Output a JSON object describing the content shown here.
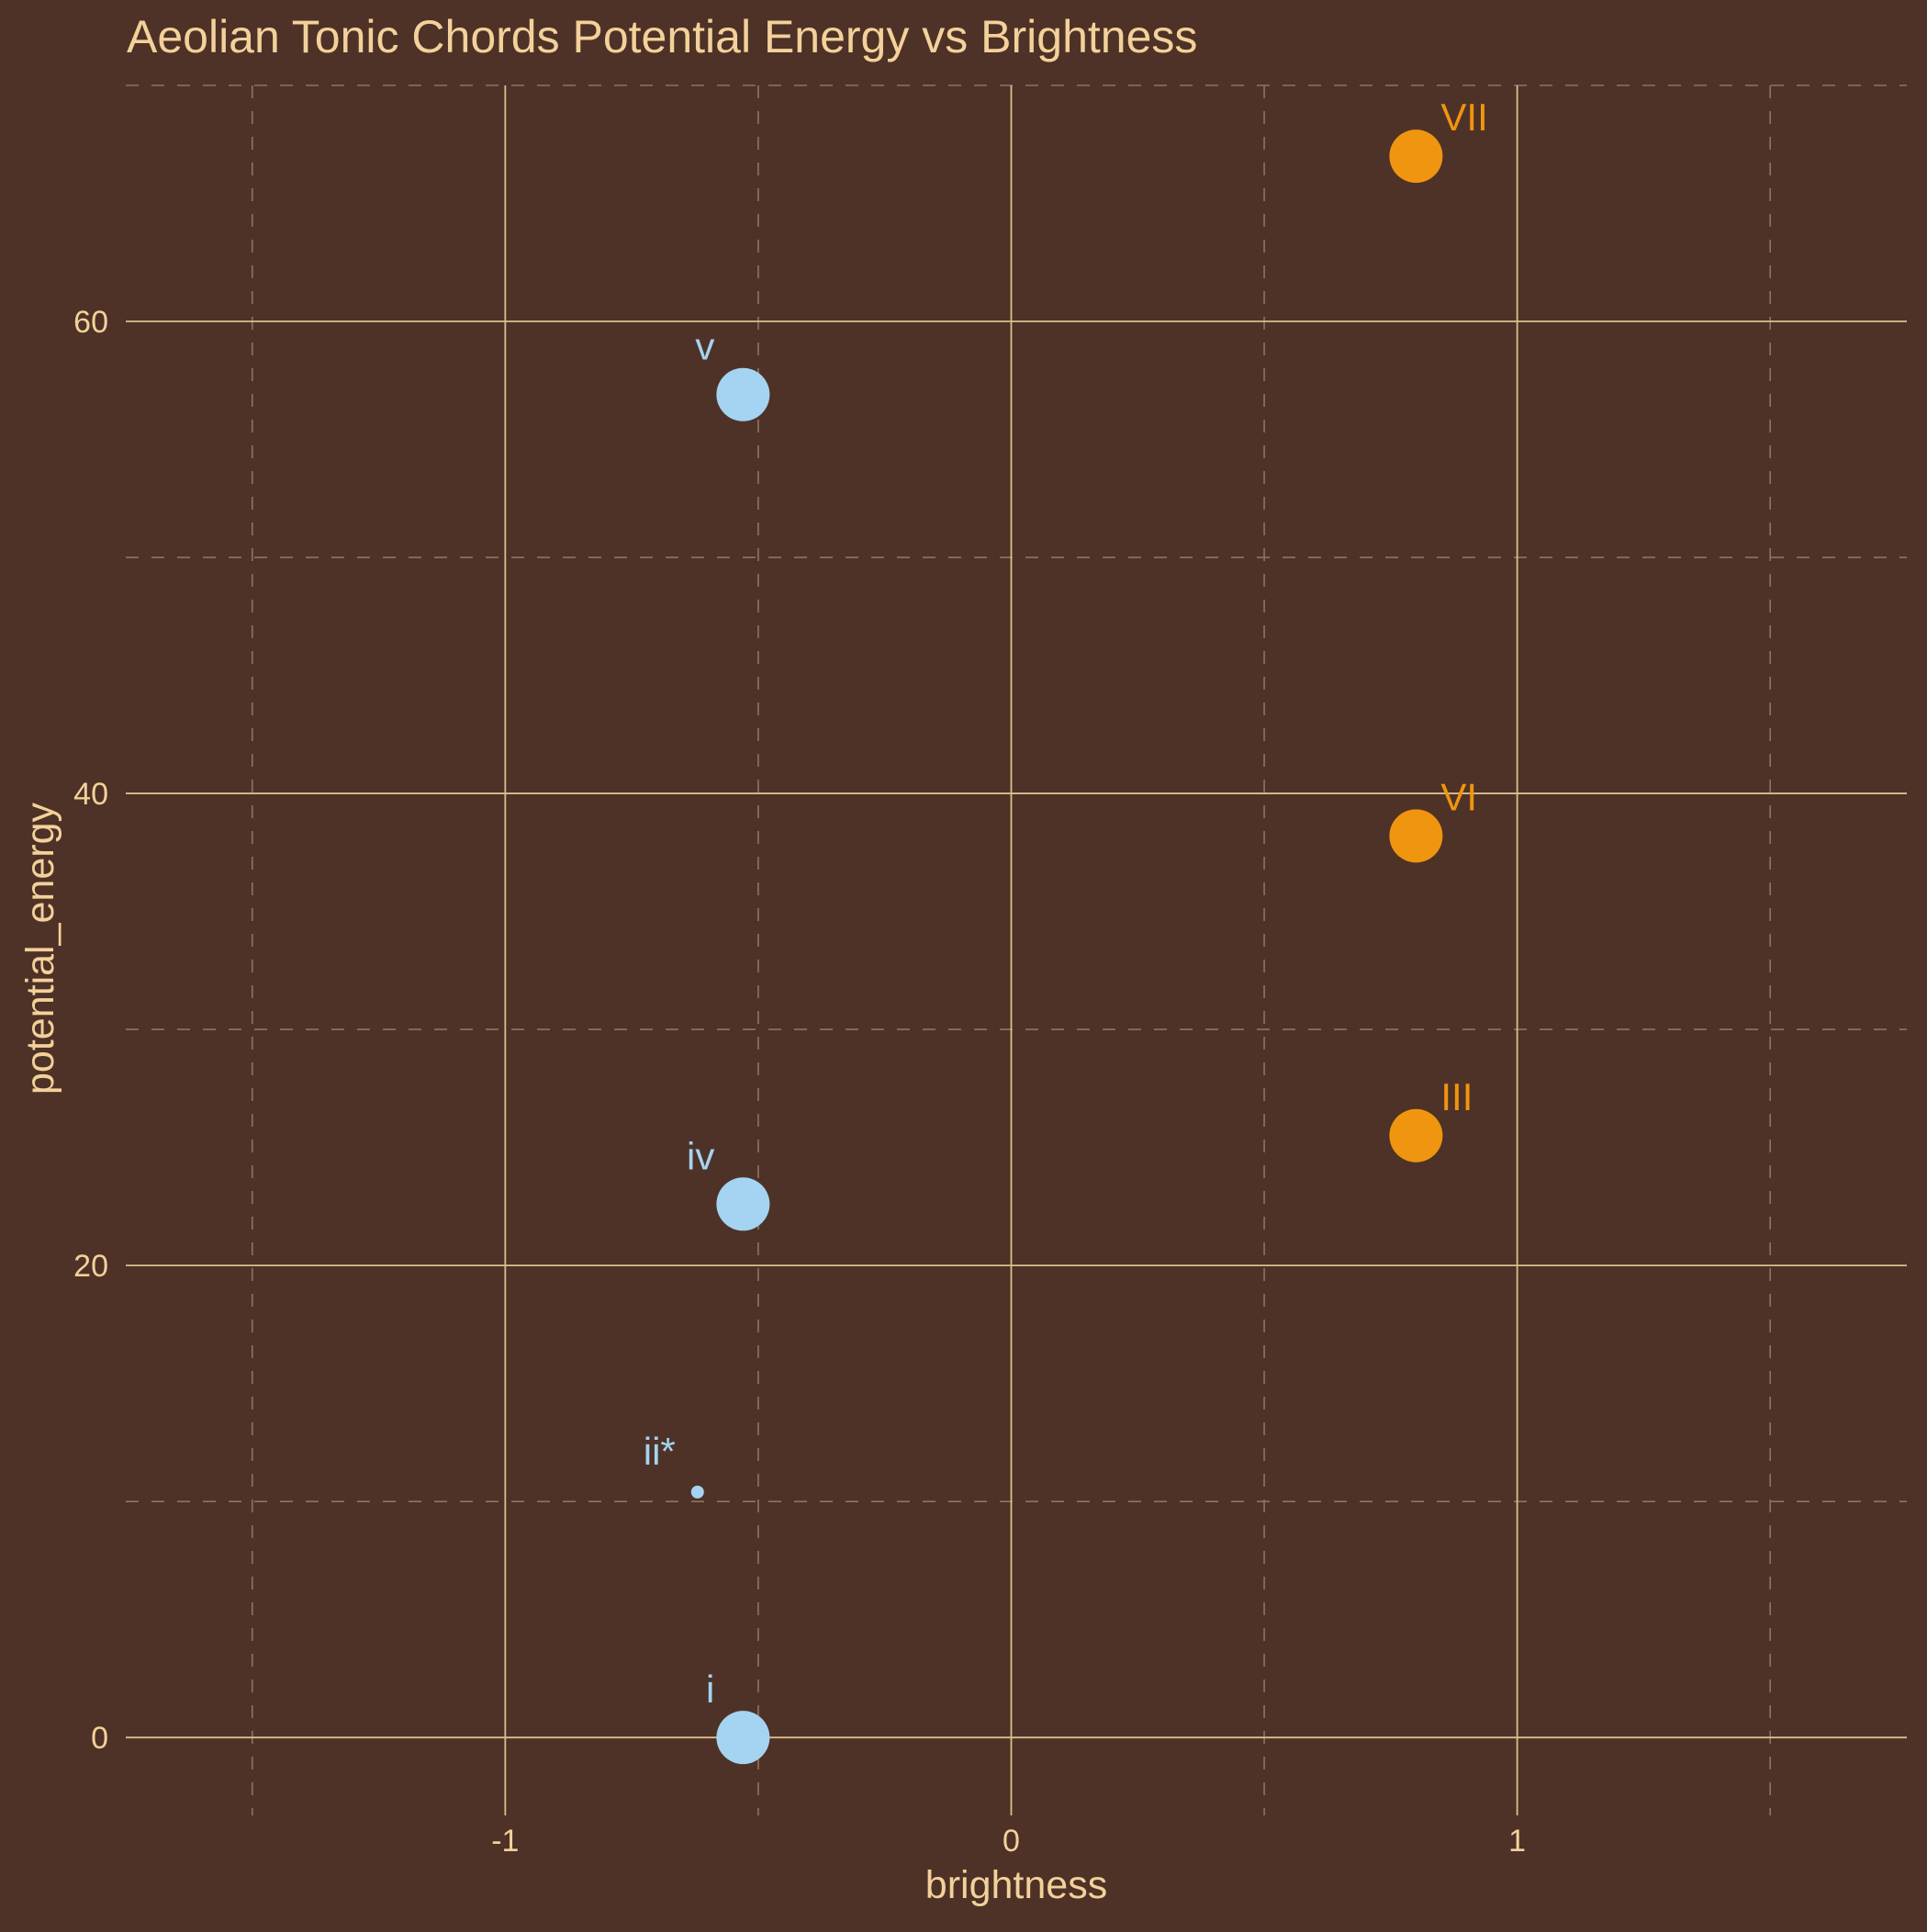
{
  "chart_data": {
    "type": "scatter",
    "title": "Aeolian Tonic Chords Potential Energy vs Brightness",
    "xlabel": "brightness",
    "ylabel": "potential_energy",
    "xlim": [
      -1.75,
      1.77
    ],
    "ylim": [
      -3.3,
      70
    ],
    "x_ticks": [
      {
        "value": -1,
        "label": "-1"
      },
      {
        "value": 0,
        "label": "0"
      },
      {
        "value": 1,
        "label": "1"
      }
    ],
    "y_ticks": [
      {
        "value": 0,
        "label": "0"
      },
      {
        "value": 20,
        "label": "20"
      },
      {
        "value": 40,
        "label": "40"
      },
      {
        "value": 60,
        "label": "60"
      }
    ],
    "x_minor_ticks": [
      -1.5,
      -0.5,
      0.5,
      1.5
    ],
    "y_minor_ticks": [
      10,
      30,
      50,
      70
    ],
    "grid": true,
    "legend": "none",
    "points": [
      {
        "label": "VII",
        "x": 0.8,
        "y": 67,
        "size": "large",
        "group": "major"
      },
      {
        "label": "v",
        "x": -0.53,
        "y": 56.9,
        "size": "large",
        "group": "minor"
      },
      {
        "label": "VI",
        "x": 0.8,
        "y": 38.2,
        "size": "large",
        "group": "major"
      },
      {
        "label": "III",
        "x": 0.8,
        "y": 25.5,
        "size": "large",
        "group": "major"
      },
      {
        "label": "iv",
        "x": -0.53,
        "y": 22.6,
        "size": "large",
        "group": "minor"
      },
      {
        "label": "ii*",
        "x": -0.62,
        "y": 10.4,
        "size": "small",
        "group": "minor"
      },
      {
        "label": "i",
        "x": -0.53,
        "y": 0,
        "size": "large",
        "group": "minor"
      }
    ],
    "colors": {
      "background": "#4e3227",
      "text": "#f3d19a",
      "major_grid": "#d9bf8c",
      "minor_grid": "#8b7465",
      "major_points": "#f0950f",
      "minor_points": "#a4d4f1"
    }
  }
}
